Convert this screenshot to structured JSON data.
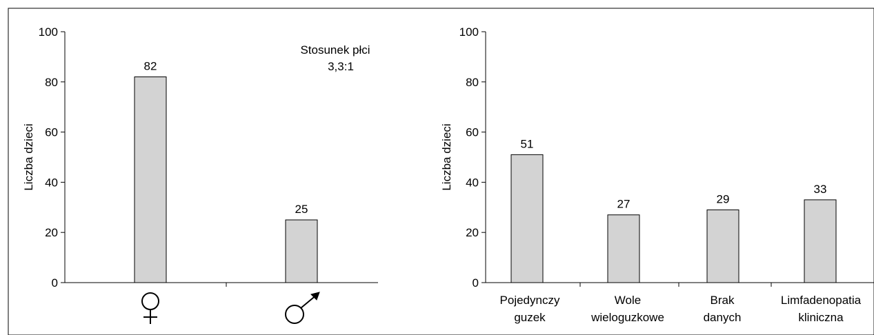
{
  "chart_data": [
    {
      "type": "bar",
      "categories": [
        "♀",
        "♂"
      ],
      "values": [
        82,
        25
      ],
      "data_labels": [
        "82",
        "25"
      ],
      "ylabel": "Liczba dzieci",
      "ylim": [
        0,
        100
      ],
      "yticks": [
        "0",
        "20",
        "40",
        "60",
        "80",
        "100"
      ],
      "annotation": [
        "Stosunek płci",
        "3,3:1"
      ],
      "bar_color": "#d3d3d3",
      "grid": false
    },
    {
      "type": "bar",
      "categories": [
        [
          "Pojedynczy",
          "guzek"
        ],
        [
          "Wole",
          "wieloguzkowe"
        ],
        [
          "Brak",
          "danych"
        ],
        [
          "Limfadenopatia",
          "kliniczna"
        ]
      ],
      "values": [
        51,
        27,
        29,
        33
      ],
      "data_labels": [
        "51",
        "27",
        "29",
        "33"
      ],
      "ylabel": "Liczba dzieci",
      "ylim": [
        0,
        100
      ],
      "yticks": [
        "0",
        "20",
        "40",
        "60",
        "80",
        "100"
      ],
      "bar_color": "#d3d3d3",
      "grid": false
    }
  ]
}
